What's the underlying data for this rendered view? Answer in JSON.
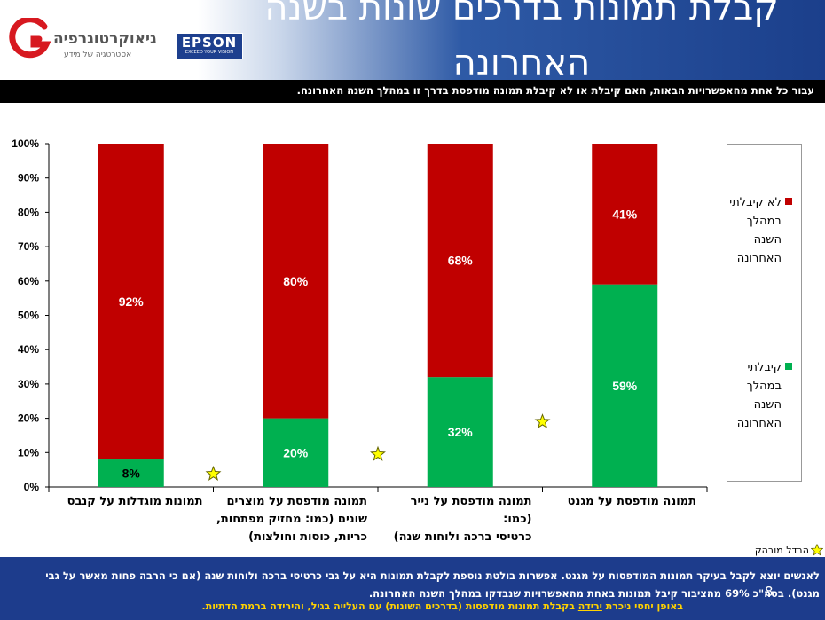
{
  "slide": {
    "title": "קבלת תמונות בדרכים שונות בשנה האחרונה",
    "question": "עבור כל אחת מהאפשרויות הבאות, האם קיבלת או לא קיבלת תמונה מודפסת בדרך זו במהלך השנה האחרונה.",
    "page_number": "8"
  },
  "logos": {
    "geo_name": "גיאוקרטוגרפיה",
    "geo_tagline": "אסטרטגיה של מידע",
    "epson_name": "EPSON",
    "epson_tagline": "EXCEED YOUR VISION"
  },
  "chart_data": {
    "type": "bar",
    "stacked": true,
    "percent_stacked": true,
    "categories": [
      "תמונה מודפסת על מגנט",
      "תמונה מודפסת על נייר (כמו: כרטיסי ברכה ולוחות שנה)",
      "תמונה מודפסת על מוצרים שונים (כמו: מחזיק מפתחות, כריות, כוסות וחולצות)",
      "תמונות מוגדלות על קנבס"
    ],
    "category_lines": [
      [
        "תמונה מודפסת על מגנט"
      ],
      [
        "תמונה מודפסת על נייר (כמו:",
        "כרטיסי ברכה ולוחות שנה)"
      ],
      [
        "תמונה מודפסת על מוצרים",
        "שונים (כמו: מחזיק מפתחות,",
        "כריות, כוסות וחולצות)"
      ],
      [
        "תמונות מוגדלות על קנבס"
      ]
    ],
    "series": [
      {
        "name": "קיבלתי במהלך השנה האחרונה",
        "color": "#00b050",
        "values": [
          59,
          32,
          20,
          8
        ]
      },
      {
        "name": "לא קיבלתי במהלך השנה האחרונה",
        "color": "#c00000",
        "values": [
          41,
          68,
          80,
          92
        ]
      }
    ],
    "data_labels": [
      [
        "59%",
        "32%",
        "20%",
        "8%"
      ],
      [
        "41%",
        "68%",
        "80%",
        "92%"
      ]
    ],
    "y_ticks": [
      "0%",
      "10%",
      "20%",
      "30%",
      "40%",
      "50%",
      "60%",
      "70%",
      "80%",
      "90%",
      "100%"
    ],
    "ylim": [
      0,
      100
    ],
    "grid": false,
    "legend_position": "right",
    "significance_markers": {
      "symbol": "star",
      "color": "#ffff00",
      "between_categories": [
        [
          0,
          1
        ],
        [
          1,
          2
        ],
        [
          2,
          3
        ]
      ],
      "levels": [
        19,
        9.5,
        3.8
      ]
    }
  },
  "legend": {
    "not_received_lines": [
      "לא קיבלתי",
      "במהלך",
      "השנה",
      "האחרונה"
    ],
    "received_lines": [
      "קיבלתי",
      "במהלך",
      "השנה",
      "האחרונה"
    ]
  },
  "notes": {
    "significance": "הבדל מובהק",
    "finding_line1": "לאנשים יוצא לקבל בעיקר תמונות המודפסות על מגנט. אפשרות בולטת נוספת לקבלת תמונות היא על גבי כרטיסי ברכה ולוחות שנה (אם כי הרבה פחות מאשר על גבי מגנט). בסה\"כ 69% מהציבור קיבל תמונות באחת מהאפשרויות שנבדקו במהלך השנה האחרונה.",
    "finding_line2_a": "באופן יחסי ניכרת ",
    "finding_line2_b": "ירידה",
    "finding_line2_c": " בקבלת תמונות מודפסות (בדרכים השונות) עם העלייה בגיל, והירידה ברמת הדתיות."
  }
}
